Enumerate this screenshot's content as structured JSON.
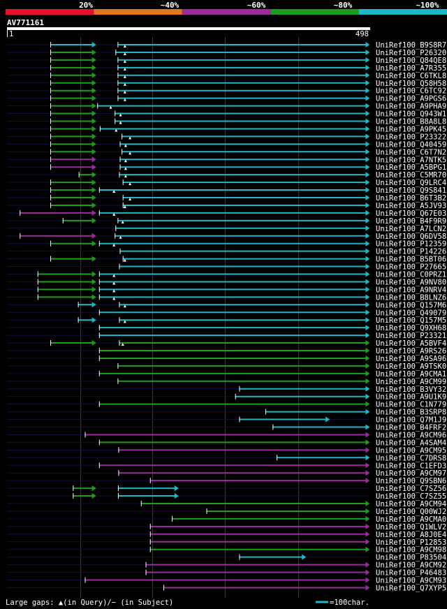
{
  "chart_data": {
    "type": "alignment-overview",
    "title": "AV771161",
    "query_range": {
      "start_label": "1",
      "end_label": "498",
      "start": 1,
      "end": 498
    },
    "identity_scale": [
      {
        "label": "20%",
        "color": "#e8102e"
      },
      {
        "label": "~40%",
        "color": "#e0761e"
      },
      {
        "label": "~60%",
        "color": "#9b2b9e"
      },
      {
        "label": "~80%",
        "color": "#1c9e1c"
      },
      {
        "label": "~100%",
        "color": "#1cb8c8"
      }
    ],
    "footer": {
      "legend_text": "Large gaps: ▲(in Query)/− (in Subject)",
      "scale_text": "=100char."
    },
    "hits": [
      {
        "name": "UniRef100_B9S8R7",
        "segs": [
          [
            119,
            243,
            "c"
          ],
          [
            304,
            995,
            "c"
          ]
        ],
        "marks": [
          324
        ]
      },
      {
        "name": "UniRef100_P26320",
        "segs": [
          [
            119,
            243,
            "g"
          ],
          [
            298,
            995,
            "c"
          ]
        ],
        "marks": [
          324
        ]
      },
      {
        "name": "UniRef100_Q84QE8",
        "segs": [
          [
            119,
            243,
            "g"
          ],
          [
            304,
            995,
            "c"
          ]
        ],
        "marks": [
          324
        ]
      },
      {
        "name": "UniRef100_A7R355",
        "segs": [
          [
            119,
            243,
            "g"
          ],
          [
            304,
            995,
            "c"
          ]
        ],
        "marks": [
          324
        ]
      },
      {
        "name": "UniRef100_C6TKL8",
        "segs": [
          [
            119,
            243,
            "g"
          ],
          [
            304,
            995,
            "c"
          ]
        ],
        "marks": [
          324
        ]
      },
      {
        "name": "UniRef100_Q58H58",
        "segs": [
          [
            119,
            243,
            "g"
          ],
          [
            304,
            995,
            "c"
          ]
        ],
        "marks": [
          324
        ]
      },
      {
        "name": "UniRef100_C6TC92",
        "segs": [
          [
            119,
            243,
            "g"
          ],
          [
            304,
            995,
            "c"
          ]
        ],
        "marks": [
          324
        ]
      },
      {
        "name": "UniRef100_A9PGS6",
        "segs": [
          [
            119,
            243,
            "g"
          ],
          [
            304,
            995,
            "c"
          ]
        ],
        "marks": [
          324
        ]
      },
      {
        "name": "UniRef100_A9PHA9",
        "segs": [
          [
            119,
            243,
            "g"
          ],
          [
            248,
            995,
            "c"
          ]
        ],
        "marks": [
          285
        ]
      },
      {
        "name": "UniRef100_Q943W1",
        "segs": [
          [
            119,
            243,
            "g"
          ],
          [
            296,
            995,
            "c"
          ]
        ],
        "marks": [
          312
        ]
      },
      {
        "name": "UniRef100_B8A8L8",
        "segs": [
          [
            119,
            243,
            "g"
          ],
          [
            296,
            995,
            "c"
          ]
        ],
        "marks": [
          312
        ]
      },
      {
        "name": "UniRef100_A9PK45",
        "segs": [
          [
            119,
            243,
            "g"
          ],
          [
            255,
            995,
            "c"
          ]
        ],
        "marks": [
          300
        ]
      },
      {
        "name": "UniRef100_P23322",
        "segs": [
          [
            119,
            243,
            "g"
          ],
          [
            315,
            995,
            "c"
          ]
        ],
        "marks": [
          338
        ]
      },
      {
        "name": "UniRef100_Q40459",
        "segs": [
          [
            119,
            243,
            "g"
          ],
          [
            310,
            995,
            "c"
          ]
        ],
        "marks": [
          326
        ]
      },
      {
        "name": "UniRef100_C6T7N2",
        "segs": [
          [
            119,
            243,
            "g"
          ],
          [
            315,
            995,
            "c"
          ]
        ],
        "marks": [
          338
        ]
      },
      {
        "name": "UniRef100_A7NTK5",
        "segs": [
          [
            119,
            243,
            "p"
          ],
          [
            310,
            995,
            "c"
          ]
        ],
        "marks": [
          326
        ]
      },
      {
        "name": "UniRef100_A5BPG1",
        "segs": [
          [
            119,
            243,
            "p"
          ],
          [
            310,
            995,
            "c"
          ]
        ],
        "marks": [
          326
        ]
      },
      {
        "name": "UniRef100_C5MR70",
        "segs": [
          [
            197,
            243,
            "g"
          ],
          [
            308,
            995,
            "c"
          ]
        ],
        "marks": [
          326
        ]
      },
      {
        "name": "UniRef100_Q9LRC4",
        "segs": [
          [
            119,
            243,
            "g"
          ],
          [
            318,
            995,
            "c"
          ]
        ],
        "marks": [
          338
        ]
      },
      {
        "name": "UniRef100_Q9S841",
        "segs": [
          [
            119,
            243,
            "g"
          ],
          [
            253,
            995,
            "c"
          ]
        ],
        "marks": [
          294
        ]
      },
      {
        "name": "UniRef100_B6T3B2",
        "segs": [
          [
            119,
            243,
            "g"
          ],
          [
            318,
            995,
            "c"
          ]
        ],
        "marks": [
          338
        ]
      },
      {
        "name": "UniRef100_A5JV93",
        "segs": [
          [
            119,
            243,
            "g"
          ],
          [
            318,
            995,
            "c"
          ]
        ],
        "marks": [
          324
        ]
      },
      {
        "name": "UniRef100_Q67E03",
        "segs": [
          [
            35,
            243,
            "p"
          ],
          [
            253,
            995,
            "c"
          ]
        ],
        "marks": [
          294
        ]
      },
      {
        "name": "UniRef100_B4F9R9",
        "segs": [
          [
            153,
            243,
            "g"
          ],
          [
            304,
            995,
            "c"
          ]
        ],
        "marks": [
          318
        ]
      },
      {
        "name": "UniRef100_A7LCN2",
        "segs": [
          [
            298,
            995,
            "c"
          ]
        ],
        "marks": []
      },
      {
        "name": "UniRef100_Q6DV58",
        "segs": [
          [
            35,
            243,
            "p"
          ],
          [
            296,
            995,
            "c"
          ]
        ],
        "marks": [
          312
        ]
      },
      {
        "name": "UniRef100_P12359",
        "segs": [
          [
            119,
            243,
            "g"
          ],
          [
            253,
            995,
            "c"
          ]
        ],
        "marks": [
          294
        ]
      },
      {
        "name": "UniRef100_P14226",
        "segs": [
          [
            310,
            995,
            "c"
          ]
        ],
        "marks": []
      },
      {
        "name": "UniRef100_B5BT06",
        "segs": [
          [
            119,
            243,
            "g"
          ],
          [
            318,
            995,
            "c"
          ]
        ],
        "marks": [
          324
        ]
      },
      {
        "name": "UniRef100_P27665",
        "segs": [
          [
            308,
            995,
            "c"
          ]
        ],
        "marks": []
      },
      {
        "name": "UniRef100_C0PRZ1",
        "segs": [
          [
            84,
            243,
            "g"
          ],
          [
            253,
            995,
            "c"
          ]
        ],
        "marks": [
          294
        ]
      },
      {
        "name": "UniRef100_A9NV80",
        "segs": [
          [
            84,
            243,
            "g"
          ],
          [
            253,
            995,
            "c"
          ]
        ],
        "marks": [
          294
        ]
      },
      {
        "name": "UniRef100_A9NRV4",
        "segs": [
          [
            84,
            243,
            "g"
          ],
          [
            253,
            995,
            "c"
          ]
        ],
        "marks": [
          294
        ]
      },
      {
        "name": "UniRef100_B8LNZ6",
        "segs": [
          [
            84,
            243,
            "g"
          ],
          [
            253,
            995,
            "c"
          ]
        ],
        "marks": [
          294
        ]
      },
      {
        "name": "UniRef100_Q157M6",
        "segs": [
          [
            195,
            243,
            "c"
          ],
          [
            308,
            995,
            "c"
          ]
        ],
        "marks": [
          324
        ]
      },
      {
        "name": "UniRef100_Q49079",
        "segs": [
          [
            253,
            995,
            "c"
          ]
        ],
        "marks": []
      },
      {
        "name": "UniRef100_Q157M5",
        "segs": [
          [
            195,
            243,
            "c"
          ],
          [
            308,
            995,
            "c"
          ]
        ],
        "marks": [
          324
        ]
      },
      {
        "name": "UniRef100_Q9XH68",
        "segs": [
          [
            253,
            995,
            "c"
          ]
        ],
        "marks": []
      },
      {
        "name": "UniRef100_P23321",
        "segs": [
          [
            253,
            995,
            "c"
          ]
        ],
        "marks": []
      },
      {
        "name": "UniRef100_A5BVF4",
        "segs": [
          [
            119,
            243,
            "g"
          ],
          [
            308,
            995,
            "g"
          ]
        ],
        "marks": [
          318
        ]
      },
      {
        "name": "UniRef100_A9RS26",
        "segs": [
          [
            253,
            995,
            "g"
          ]
        ],
        "marks": []
      },
      {
        "name": "UniRef100_A9SA96",
        "segs": [
          [
            253,
            995,
            "g"
          ]
        ],
        "marks": []
      },
      {
        "name": "UniRef100_A9TSK0",
        "segs": [
          [
            304,
            995,
            "g"
          ]
        ],
        "marks": []
      },
      {
        "name": "UniRef100_A9CMA1",
        "segs": [
          [
            253,
            995,
            "g"
          ]
        ],
        "marks": []
      },
      {
        "name": "UniRef100_A9CM99",
        "segs": [
          [
            304,
            995,
            "g"
          ]
        ],
        "marks": []
      },
      {
        "name": "UniRef100_B3VY32",
        "segs": [
          [
            638,
            995,
            "c"
          ]
        ],
        "marks": []
      },
      {
        "name": "UniRef100_A9U1K9",
        "segs": [
          [
            627,
            995,
            "c"
          ]
        ],
        "marks": []
      },
      {
        "name": "UniRef100_C1N779",
        "segs": [
          [
            253,
            995,
            "g"
          ]
        ],
        "marks": []
      },
      {
        "name": "UniRef100_B3SRP8",
        "segs": [
          [
            710,
            995,
            "c"
          ]
        ],
        "marks": []
      },
      {
        "name": "UniRef100_Q7M1J9",
        "segs": [
          [
            638,
            885,
            "c"
          ]
        ],
        "marks": []
      },
      {
        "name": "UniRef100_B4FRF2",
        "segs": [
          [
            730,
            995,
            "c"
          ]
        ],
        "marks": []
      },
      {
        "name": "UniRef100_A9CM96",
        "segs": [
          [
            214,
            995,
            "p"
          ]
        ],
        "marks": []
      },
      {
        "name": "UniRef100_A4SAM4",
        "segs": [
          [
            253,
            995,
            "g"
          ]
        ],
        "marks": []
      },
      {
        "name": "UniRef100_A9CM95",
        "segs": [
          [
            306,
            995,
            "p"
          ]
        ],
        "marks": []
      },
      {
        "name": "UniRef100_C7DRS8",
        "segs": [
          [
            741,
            995,
            "c"
          ]
        ],
        "marks": []
      },
      {
        "name": "UniRef100_C1EFD3",
        "segs": [
          [
            253,
            995,
            "p"
          ]
        ],
        "marks": []
      },
      {
        "name": "UniRef100_A9CM97",
        "segs": [
          [
            306,
            995,
            "p"
          ]
        ],
        "marks": []
      },
      {
        "name": "UniRef100_Q9SBN6",
        "segs": [
          [
            393,
            995,
            "p"
          ]
        ],
        "marks": []
      },
      {
        "name": "UniRef100_C7SZ56",
        "segs": [
          [
            181,
            243,
            "g"
          ],
          [
            305,
            470,
            "c"
          ]
        ],
        "marks": []
      },
      {
        "name": "UniRef100_C7SZ55",
        "segs": [
          [
            181,
            243,
            "g"
          ],
          [
            305,
            470,
            "c"
          ]
        ],
        "marks": []
      },
      {
        "name": "UniRef100_A9CM94",
        "segs": [
          [
            368,
            995,
            "g"
          ]
        ],
        "marks": []
      },
      {
        "name": "UniRef100_Q00WJ2",
        "segs": [
          [
            548,
            995,
            "g"
          ]
        ],
        "marks": []
      },
      {
        "name": "UniRef100_A9CMA0",
        "segs": [
          [
            453,
            995,
            "g"
          ]
        ],
        "marks": []
      },
      {
        "name": "UniRef100_Q1WLV2",
        "segs": [
          [
            393,
            995,
            "p"
          ]
        ],
        "marks": []
      },
      {
        "name": "UniRef100_A8J0E4",
        "segs": [
          [
            393,
            995,
            "p"
          ]
        ],
        "marks": []
      },
      {
        "name": "UniRef100_P12853",
        "segs": [
          [
            393,
            995,
            "p"
          ]
        ],
        "marks": []
      },
      {
        "name": "UniRef100_A9CM98",
        "segs": [
          [
            393,
            995,
            "g"
          ]
        ],
        "marks": []
      },
      {
        "name": "UniRef100_P83504",
        "segs": [
          [
            638,
            820,
            "c"
          ]
        ],
        "marks": []
      },
      {
        "name": "UniRef100_A9CM92",
        "segs": [
          [
            381,
            995,
            "p"
          ]
        ],
        "marks": []
      },
      {
        "name": "UniRef100_P46483",
        "segs": [
          [
            381,
            995,
            "p"
          ]
        ],
        "marks": []
      },
      {
        "name": "UniRef100_A9CM93",
        "segs": [
          [
            214,
            995,
            "p"
          ]
        ],
        "marks": []
      },
      {
        "name": "UniRef100_Q7XYP5",
        "segs": [
          [
            430,
            995,
            "p"
          ]
        ],
        "marks": []
      }
    ]
  }
}
